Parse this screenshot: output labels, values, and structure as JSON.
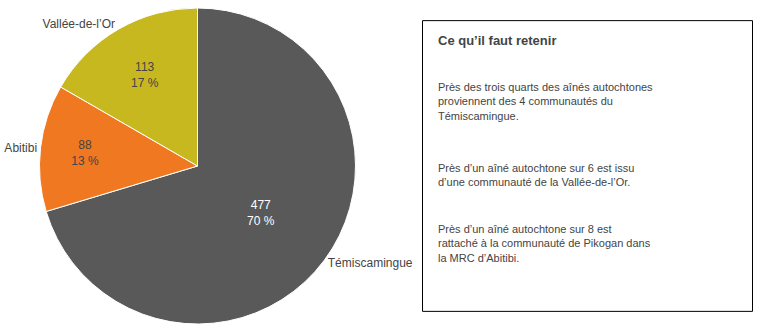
{
  "chart_data": {
    "type": "pie",
    "categories": [
      "Témiscamingue",
      "Abitibi",
      "Vallée-de-l’Or"
    ],
    "values": [
      477,
      88,
      113
    ],
    "value_labels": [
      "477\n70 %",
      "88\n13 %",
      "113\n17 %"
    ],
    "colors": [
      "#595959",
      "#F07820",
      "#C8B820"
    ],
    "annotation_title": "Ce qu’il faut retenir",
    "annotations": [
      "Près des trois quarts des aînés autochtones\nproviennent des 4 communautés du\nTémiscamingue.",
      "Près d’un aîné autochtone sur 6 est issu\nd’une communauté de la Vallée-de-l’Or.",
      "Près d’un aîné autochtone sur 8 est\nrattaché à la communauté de Pikogan dans\nla MRC d’Abitibi."
    ]
  }
}
